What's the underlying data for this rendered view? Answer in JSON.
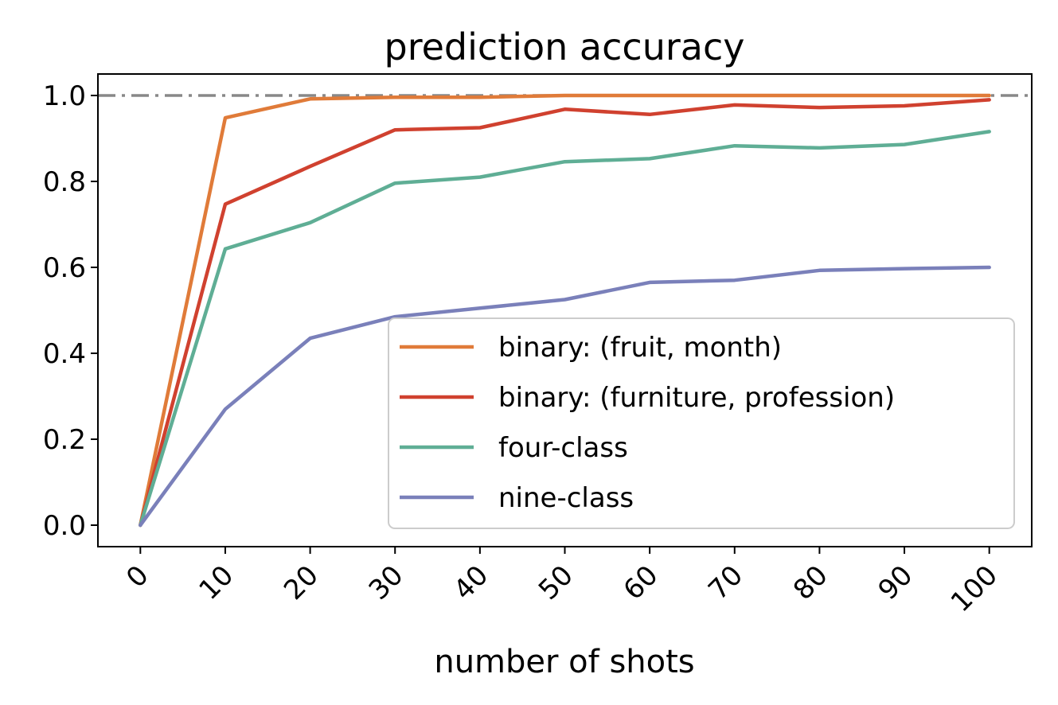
{
  "chart_data": {
    "type": "line",
    "title": "prediction accuracy",
    "xlabel": "number of shots",
    "ylabel": "",
    "x": [
      0,
      10,
      20,
      30,
      40,
      50,
      60,
      70,
      80,
      90,
      100
    ],
    "x_tick_labels": [
      "0",
      "10",
      "20",
      "30",
      "40",
      "50",
      "60",
      "70",
      "80",
      "90",
      "100"
    ],
    "xlim": [
      -5,
      105
    ],
    "ylim": [
      -0.05,
      1.05
    ],
    "y_ticks": [
      0.0,
      0.2,
      0.4,
      0.6,
      0.8,
      1.0
    ],
    "y_tick_labels": [
      "0.0",
      "0.2",
      "0.4",
      "0.6",
      "0.8",
      "1.0"
    ],
    "reference_line": {
      "y": 1.0,
      "style": "dash-dot",
      "color": "#888888"
    },
    "grid": false,
    "legend_position": "lower-right",
    "series": [
      {
        "name": "binary: (fruit, month)",
        "color": "#E07B39",
        "values": [
          0.0,
          0.948,
          0.992,
          0.996,
          0.996,
          1.0,
          1.0,
          1.0,
          1.0,
          1.0,
          1.0
        ]
      },
      {
        "name": "binary: (furniture, profession)",
        "color": "#D0412F",
        "values": [
          0.0,
          0.747,
          0.835,
          0.92,
          0.925,
          0.968,
          0.956,
          0.978,
          0.972,
          0.976,
          0.99
        ]
      },
      {
        "name": "four-class",
        "color": "#5FAE95",
        "values": [
          0.0,
          0.643,
          0.704,
          0.796,
          0.81,
          0.846,
          0.853,
          0.883,
          0.878,
          0.886,
          0.916
        ]
      },
      {
        "name": "nine-class",
        "color": "#7A80BA",
        "values": [
          0.0,
          0.27,
          0.435,
          0.485,
          0.505,
          0.525,
          0.565,
          0.57,
          0.593,
          0.597,
          0.6
        ]
      }
    ]
  }
}
